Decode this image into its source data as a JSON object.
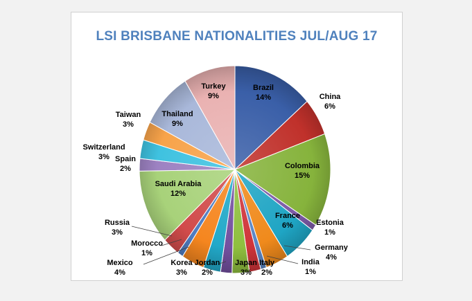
{
  "chart_data": {
    "type": "pie",
    "title": "LSI BRISBANE NATIONALITIES JUL/AUG 17",
    "start_label": "Brazil",
    "direction": "clockwise",
    "slices": [
      {
        "name": "Brazil",
        "value": 14,
        "label": "14%",
        "color": "#3a5fa8"
      },
      {
        "name": "China",
        "value": 6,
        "label": "6%",
        "color": "#c0312b"
      },
      {
        "name": "Colombia",
        "value": 15,
        "label": "15%",
        "color": "#86b33c"
      },
      {
        "name": "Estonia",
        "value": 1,
        "label": "1%",
        "color": "#7b5aa6"
      },
      {
        "name": "France",
        "value": 6,
        "label": "6%",
        "color": "#1fa5c4"
      },
      {
        "name": "Germany",
        "value": 4,
        "label": "4%",
        "color": "#f08a1c"
      },
      {
        "name": "India",
        "value": 1,
        "label": "1%",
        "color": "#5b86c5"
      },
      {
        "name": "Italy",
        "value": 2,
        "label": "2%",
        "color": "#d0353a"
      },
      {
        "name": "Japan",
        "value": 3,
        "label": "3%",
        "color": "#8fbf3f"
      },
      {
        "name": "Jordan",
        "value": 2,
        "label": "2%",
        "color": "#7450a0"
      },
      {
        "name": "Korea",
        "value": 3,
        "label": "3%",
        "color": "#22a9c9"
      },
      {
        "name": "Mexico",
        "value": 4,
        "label": "4%",
        "color": "#f5861f"
      },
      {
        "name": "Morocco",
        "value": 1,
        "label": "1%",
        "color": "#4f7cc0"
      },
      {
        "name": "Russia",
        "value": 3,
        "label": "3%",
        "color": "#d14b4b"
      },
      {
        "name": "Saudi Arabia",
        "value": 12,
        "label": "12%",
        "color": "#a8d27a"
      },
      {
        "name": "Spain",
        "value": 2,
        "label": "2%",
        "color": "#9d82c2"
      },
      {
        "name": "Switzerland",
        "value": 3,
        "label": "3%",
        "color": "#3fc2e0"
      },
      {
        "name": "Taiwan",
        "value": 3,
        "label": "3%",
        "color": "#f7a34a"
      },
      {
        "name": "Thailand",
        "value": 9,
        "label": "9%",
        "color": "#a9b8da"
      },
      {
        "name": "Turkey",
        "value": 9,
        "label": "9%",
        "color": "#eab2b2"
      }
    ]
  }
}
